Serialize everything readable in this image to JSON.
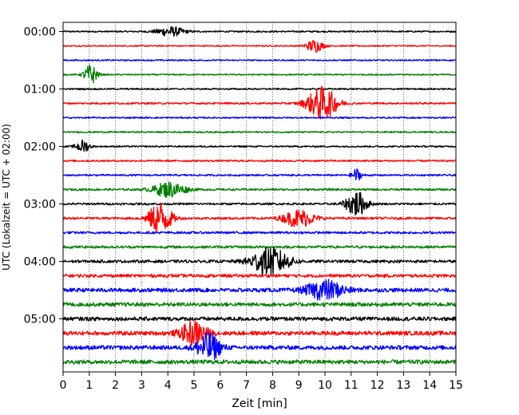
{
  "chart_data": {
    "type": "line",
    "title": "",
    "xlabel": "Zeit  [min]",
    "ylabel": "UTC (Lokalzeit = UTC + 02:00)",
    "xlim": [
      0,
      15
    ],
    "x_ticks": [
      0,
      1,
      2,
      3,
      4,
      5,
      6,
      7,
      8,
      9,
      10,
      11,
      12,
      13,
      14,
      15
    ],
    "y_ticks": [
      "00:00",
      "01:00",
      "02:00",
      "03:00",
      "04:00",
      "05:00"
    ],
    "y_tick_rows": [
      0,
      4,
      8,
      12,
      16,
      20
    ],
    "row_minutes": 15,
    "color_cycle": [
      "#000000",
      "#ff0000",
      "#0000ff",
      "#008000"
    ],
    "grid": {
      "x_dotted": true
    },
    "traces": [
      {
        "row": 0,
        "noise": 0.12,
        "events": [
          {
            "t": 4.1,
            "amp": 0.75,
            "w": 0.75
          }
        ]
      },
      {
        "row": 1,
        "noise": 0.1,
        "events": [
          {
            "t": 9.6,
            "amp": 1.0,
            "w": 0.45
          }
        ]
      },
      {
        "row": 2,
        "noise": 0.11,
        "events": []
      },
      {
        "row": 3,
        "noise": 0.1,
        "events": [
          {
            "t": 1.05,
            "amp": 1.6,
            "w": 0.35
          }
        ]
      },
      {
        "row": 4,
        "noise": 0.12,
        "events": []
      },
      {
        "row": 5,
        "noise": 0.14,
        "events": [
          {
            "t": 9.9,
            "amp": 2.6,
            "w": 0.8
          }
        ]
      },
      {
        "row": 6,
        "noise": 0.12,
        "events": []
      },
      {
        "row": 7,
        "noise": 0.12,
        "events": []
      },
      {
        "row": 8,
        "noise": 0.12,
        "events": [
          {
            "t": 0.75,
            "amp": 1.0,
            "w": 0.35
          }
        ]
      },
      {
        "row": 9,
        "noise": 0.14,
        "events": []
      },
      {
        "row": 10,
        "noise": 0.14,
        "events": [
          {
            "t": 11.2,
            "amp": 1.0,
            "w": 0.25
          }
        ]
      },
      {
        "row": 11,
        "noise": 0.16,
        "events": [
          {
            "t": 4.05,
            "amp": 1.2,
            "w": 0.85
          }
        ]
      },
      {
        "row": 12,
        "noise": 0.16,
        "events": [
          {
            "t": 11.2,
            "amp": 2.0,
            "w": 0.55
          }
        ]
      },
      {
        "row": 13,
        "noise": 0.18,
        "events": [
          {
            "t": 3.7,
            "amp": 2.6,
            "w": 0.6
          },
          {
            "t": 9.0,
            "amp": 1.4,
            "w": 0.8
          }
        ]
      },
      {
        "row": 14,
        "noise": 0.18,
        "events": []
      },
      {
        "row": 15,
        "noise": 0.2,
        "events": []
      },
      {
        "row": 16,
        "noise": 0.22,
        "events": [
          {
            "t": 7.9,
            "amp": 2.2,
            "w": 1.0
          }
        ]
      },
      {
        "row": 17,
        "noise": 0.24,
        "events": []
      },
      {
        "row": 18,
        "noise": 0.3,
        "events": [
          {
            "t": 10.0,
            "amp": 1.5,
            "w": 1.0
          }
        ]
      },
      {
        "row": 19,
        "noise": 0.3,
        "events": []
      },
      {
        "row": 20,
        "noise": 0.3,
        "events": []
      },
      {
        "row": 21,
        "noise": 0.32,
        "events": [
          {
            "t": 5.0,
            "amp": 1.8,
            "w": 0.7
          }
        ]
      },
      {
        "row": 22,
        "noise": 0.32,
        "events": [
          {
            "t": 5.55,
            "amp": 2.3,
            "w": 0.6
          }
        ]
      },
      {
        "row": 23,
        "noise": 0.32,
        "events": []
      }
    ]
  }
}
